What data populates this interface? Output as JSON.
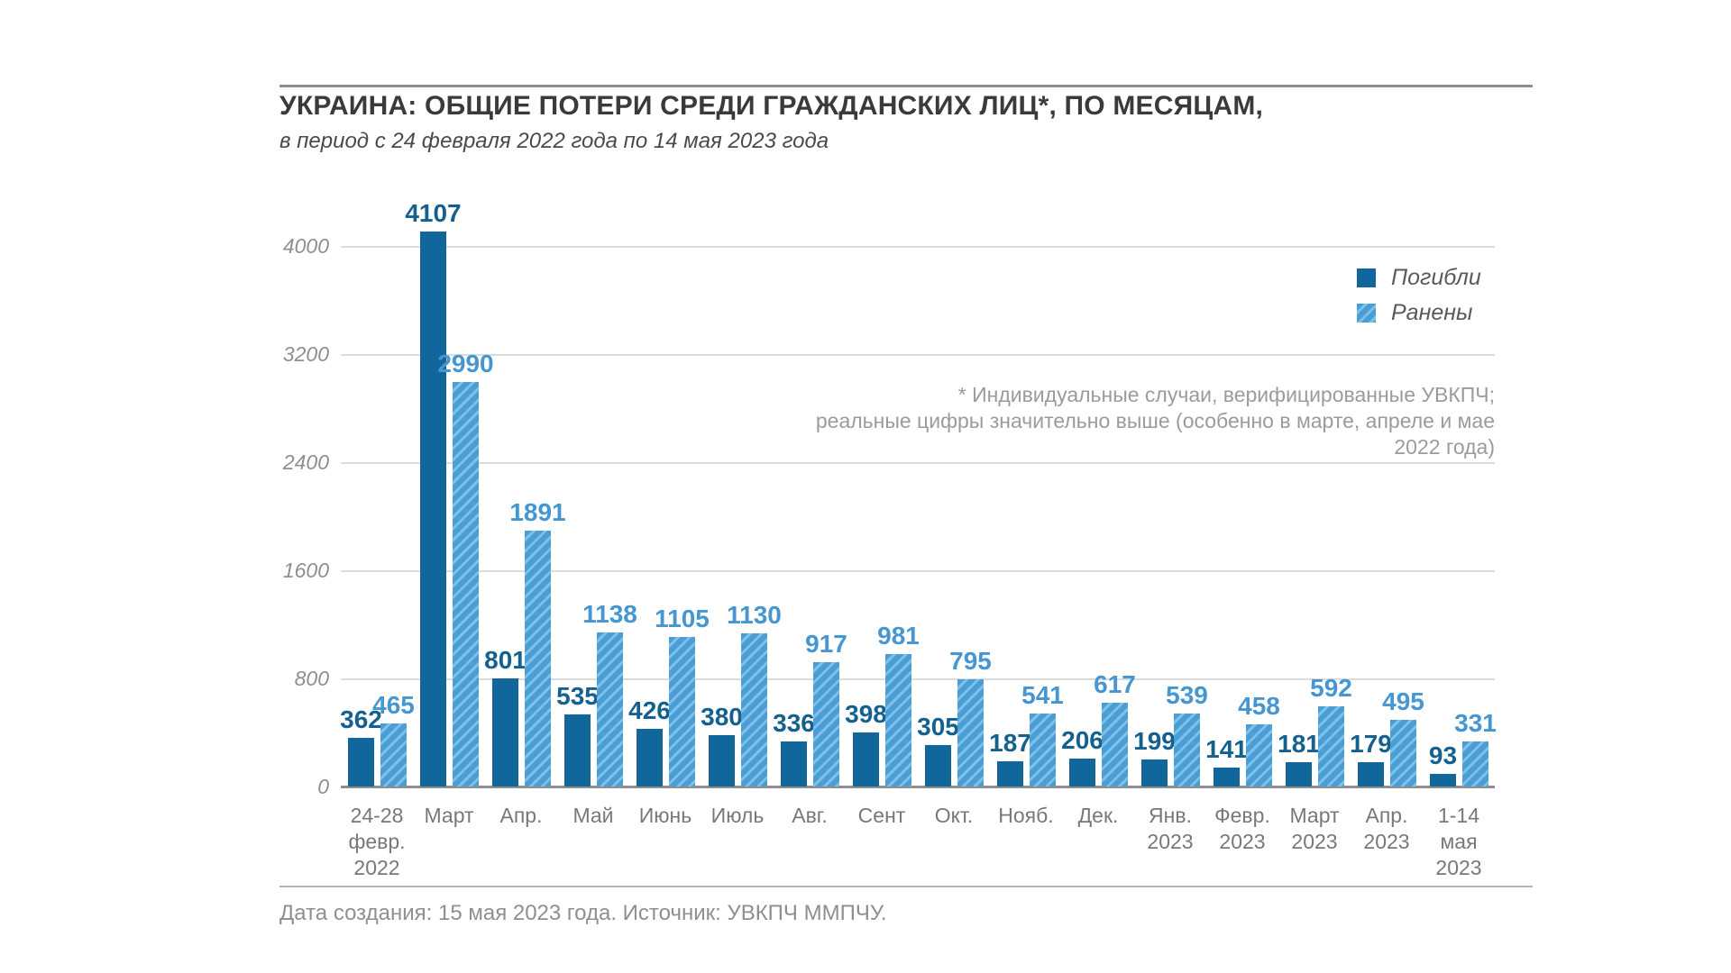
{
  "header": {
    "title": "УКРАИНА: ОБЩИЕ ПОТЕРИ СРЕДИ ГРАЖДАНСКИХ ЛИЦ*, ПО МЕСЯЦАМ,",
    "subtitle": "в период с 24 февраля 2022 года по 14 мая 2023 года"
  },
  "annotation": {
    "line1": "* Индивидуальные случаи, верифицированные УВКПЧ;",
    "line2": "реальные цифры значительно выше (особенно в марте, апреле и мае 2022 года)"
  },
  "footer": {
    "text": "Дата создания: 15 мая 2023 года. Источник: УВКПЧ ММПЧУ."
  },
  "colors": {
    "dead": "#11679c",
    "dead_label": "#14608f",
    "wounded": "#4a9dd5",
    "wounded_stripe": "#7fc0e8",
    "wounded_label": "#4596d1",
    "gridline": "#dcdcdc",
    "baseline": "#8f8f8f"
  },
  "chart_data": {
    "type": "bar",
    "title": "УКРАИНА: ОБЩИЕ ПОТЕРИ СРЕДИ ГРАЖДАНСКИХ ЛИЦ*, ПО МЕСЯЦАМ,",
    "subtitle": "в период с 24 февраля 2022 года по 14 мая 2023 года",
    "categories": [
      "24-28\nфевр.\n2022",
      "Март",
      "Апр.",
      "Май",
      "Июнь",
      "Июль",
      "Авг.",
      "Сент",
      "Окт.",
      "Нояб.",
      "Дек.",
      "Янв.\n2023",
      "Февр.\n2023",
      "Март\n2023",
      "Апр.\n2023",
      "1-14\nмая\n2023"
    ],
    "series": [
      {
        "name": "Погибли",
        "style": "solid",
        "values": [
          362,
          4107,
          801,
          535,
          426,
          380,
          336,
          398,
          305,
          187,
          206,
          199,
          141,
          181,
          179,
          93
        ]
      },
      {
        "name": "Ранены",
        "style": "hatched",
        "values": [
          465,
          2990,
          1891,
          1138,
          1105,
          1130,
          917,
          981,
          795,
          541,
          617,
          539,
          458,
          592,
          495,
          331
        ]
      }
    ],
    "y_ticks": [
      0,
      800,
      1600,
      2400,
      3200,
      4000
    ],
    "ylim": [
      0,
      4000
    ],
    "xlabel": "",
    "ylabel": "",
    "grid": "horizontal",
    "legend_position": "top-right",
    "value_labels": true
  }
}
